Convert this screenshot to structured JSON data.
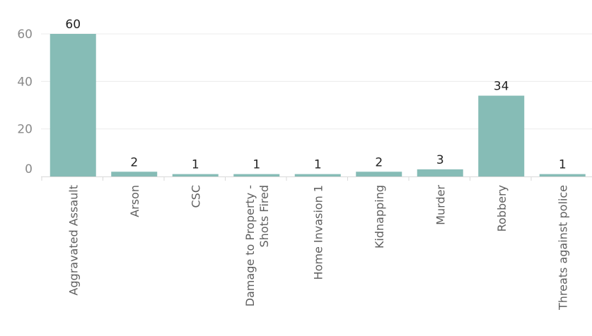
{
  "chart_data": {
    "type": "bar",
    "categories": [
      [
        "Aggravated Assault"
      ],
      [
        "Arson"
      ],
      [
        "CSC"
      ],
      [
        "Damage to Property -",
        "Shots Fired"
      ],
      [
        "Home Invasion 1"
      ],
      [
        "Kidnapping"
      ],
      [
        "Murder"
      ],
      [
        "Robbery"
      ],
      [
        "Threats against police"
      ]
    ],
    "values": [
      60,
      2,
      1,
      1,
      1,
      2,
      3,
      34,
      1
    ],
    "data_labels": [
      "60",
      "2",
      "1",
      "1",
      "1",
      "2",
      "3",
      "34",
      "1"
    ],
    "yticks": [
      0,
      20,
      40,
      60
    ],
    "ylim": [
      0,
      60
    ],
    "grid": true,
    "bar_color": "#86bcb6",
    "title": "",
    "xlabel": "",
    "ylabel": ""
  }
}
